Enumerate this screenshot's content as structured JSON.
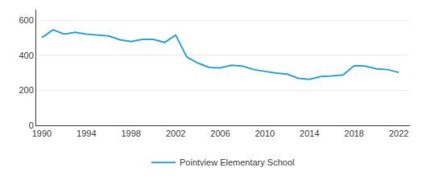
{
  "chart_data": {
    "type": "line",
    "x": [
      1990,
      1991,
      1992,
      1993,
      1994,
      1995,
      1996,
      1997,
      1998,
      1999,
      2000,
      2001,
      2002,
      2003,
      2004,
      2005,
      2006,
      2007,
      2008,
      2009,
      2010,
      2011,
      2012,
      2013,
      2014,
      2015,
      2016,
      2017,
      2018,
      2019,
      2020,
      2021,
      2022
    ],
    "series": [
      {
        "name": "Pointview Elementary School",
        "color": "#29abe2",
        "values": [
          500,
          545,
          520,
          530,
          520,
          515,
          510,
          488,
          478,
          490,
          490,
          473,
          515,
          390,
          355,
          330,
          328,
          343,
          338,
          318,
          308,
          298,
          292,
          268,
          262,
          278,
          282,
          288,
          340,
          338,
          322,
          318,
          302
        ]
      }
    ],
    "xlim": [
      1989.5,
      2023
    ],
    "xticks": [
      1990,
      1994,
      1998,
      2002,
      2006,
      2010,
      2014,
      2018,
      2022
    ],
    "ylim": [
      0,
      660
    ],
    "yticks": [
      0,
      200,
      400,
      600
    ],
    "grid": true,
    "legend": "bottom"
  }
}
